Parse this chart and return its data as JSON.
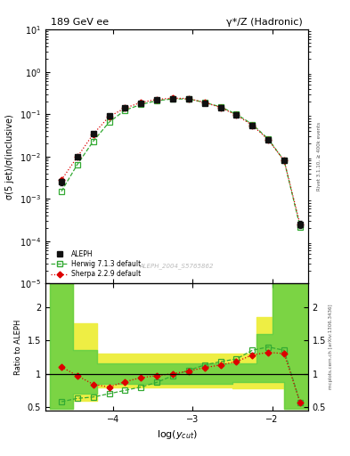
{
  "title_left": "189 GeV ee",
  "title_right": "γ*/Z (Hadronic)",
  "ylabel_main": "σ(5 jet)/σ(inclusive)",
  "ylabel_ratio": "Ratio to ALEPH",
  "xlabel": "log(y_{cut})",
  "watermark": "ALEPH_2004_S5765862",
  "right_label_top": "Rivet 3.1.10, ≥ 400k events",
  "right_label_bot": "mcplots.cern.ch [arXiv:1306.3436]",
  "aleph_x": [
    -4.65,
    -4.45,
    -4.25,
    -4.05,
    -3.85,
    -3.65,
    -3.45,
    -3.25,
    -3.05,
    -2.85,
    -2.65,
    -2.45,
    -2.25,
    -2.05,
    -1.85,
    -1.65
  ],
  "aleph_y": [
    0.0025,
    0.01,
    0.035,
    0.09,
    0.14,
    0.185,
    0.22,
    0.235,
    0.23,
    0.185,
    0.14,
    0.095,
    0.055,
    0.025,
    0.008,
    0.00025
  ],
  "aleph_yerr": [
    0.0004,
    0.001,
    0.003,
    0.006,
    0.008,
    0.01,
    0.012,
    0.012,
    0.012,
    0.01,
    0.008,
    0.006,
    0.004,
    0.002,
    0.0006,
    5e-05
  ],
  "herwig_x": [
    -4.65,
    -4.45,
    -4.25,
    -4.05,
    -3.85,
    -3.65,
    -3.45,
    -3.25,
    -3.05,
    -2.85,
    -2.65,
    -2.45,
    -2.25,
    -2.05,
    -1.85,
    -1.65
  ],
  "herwig_y": [
    0.0015,
    0.0065,
    0.023,
    0.065,
    0.125,
    0.17,
    0.21,
    0.23,
    0.23,
    0.19,
    0.15,
    0.1,
    0.058,
    0.026,
    0.008,
    0.00022
  ],
  "sherpa_x": [
    -4.65,
    -4.45,
    -4.25,
    -4.05,
    -3.85,
    -3.65,
    -3.45,
    -3.25,
    -3.05,
    -2.85,
    -2.65,
    -2.45,
    -2.25,
    -2.05,
    -1.85,
    -1.65
  ],
  "sherpa_y": [
    0.0028,
    0.0098,
    0.034,
    0.088,
    0.14,
    0.19,
    0.225,
    0.24,
    0.235,
    0.19,
    0.145,
    0.095,
    0.055,
    0.025,
    0.008,
    0.00025
  ],
  "herwig_ratio_x": [
    -4.65,
    -4.45,
    -4.25,
    -4.05,
    -3.85,
    -3.65,
    -3.45,
    -3.25,
    -3.05,
    -2.85,
    -2.65,
    -2.45,
    -2.25,
    -2.05,
    -1.85,
    -1.65
  ],
  "herwig_ratio_y": [
    0.58,
    0.63,
    0.65,
    0.7,
    0.75,
    0.8,
    0.87,
    0.97,
    1.05,
    1.13,
    1.18,
    1.22,
    1.35,
    1.4,
    1.35,
    0.57
  ],
  "sherpa_ratio_x": [
    -4.65,
    -4.45,
    -4.25,
    -4.05,
    -3.85,
    -3.65,
    -3.45,
    -3.25,
    -3.05,
    -2.85,
    -2.65,
    -2.45,
    -2.25,
    -2.05,
    -1.85,
    -1.65
  ],
  "sherpa_ratio_y": [
    1.1,
    0.97,
    0.84,
    0.8,
    0.88,
    0.94,
    0.97,
    1.0,
    1.04,
    1.09,
    1.13,
    1.18,
    1.28,
    1.32,
    1.3,
    0.57
  ],
  "band_edges": [
    -4.8,
    -4.5,
    -4.2,
    -3.5,
    -2.5,
    -2.2,
    -2.0,
    -1.85,
    -1.5
  ],
  "green_lo": [
    0.47,
    0.7,
    0.85,
    0.85,
    0.87,
    0.87,
    0.87,
    0.47,
    0.47
  ],
  "green_hi": [
    2.5,
    1.35,
    1.15,
    1.15,
    1.15,
    1.6,
    2.5,
    2.5,
    2.5
  ],
  "yellow_lo": [
    0.47,
    0.6,
    0.8,
    0.8,
    0.78,
    0.78,
    0.78,
    0.47,
    0.47
  ],
  "yellow_hi": [
    2.5,
    1.75,
    1.3,
    1.3,
    1.3,
    1.85,
    2.5,
    2.5,
    2.5
  ],
  "xlim": [
    -4.85,
    -1.55
  ],
  "ylim_main": [
    1e-05,
    10
  ],
  "ylim_ratio": [
    0.45,
    2.35
  ],
  "ratio_yticks": [
    0.5,
    1.0,
    1.5,
    2.0
  ],
  "ratio_yticklabels": [
    "0.5",
    "1",
    "1.5",
    "2"
  ],
  "aleph_color": "#111111",
  "herwig_color": "#33aa33",
  "sherpa_color": "#dd0000",
  "green_band_color": "#55cc44",
  "yellow_band_color": "#eeee44",
  "legend_labels": [
    "ALEPH",
    "Herwig 7.1.3 default",
    "Sherpa 2.2.9 default"
  ]
}
